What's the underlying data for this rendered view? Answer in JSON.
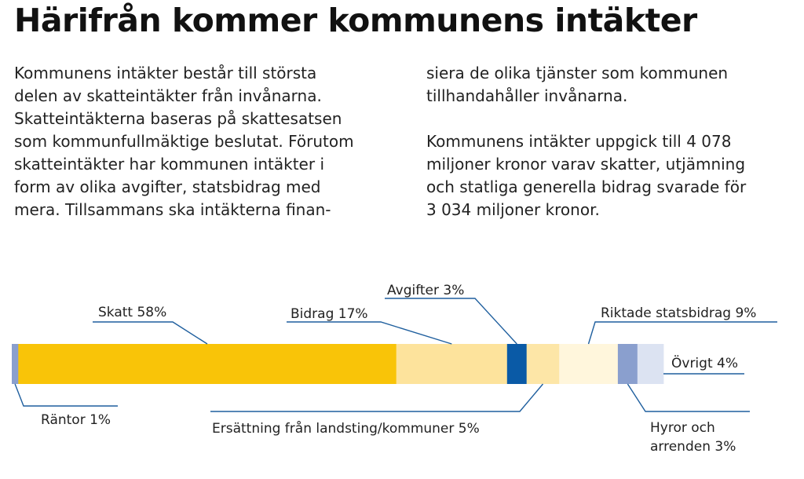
{
  "heading": "Härifrån kommer kommunens intäkter",
  "text": {
    "left_lines": [
      "Kommunens intäkter består till största",
      "delen av skatteintäkter från invånarna.",
      "Skatteintäkterna baseras på skattesatsen",
      "som kommunfullmäktige beslutat. Förutom",
      "skatteintäkter har kommunen intäkter i",
      "form av olika avgifter, statsbidrag med",
      "mera. Tillsammans ska intäkterna finan-"
    ],
    "right_p1_lines": [
      "siera de olika tjänster som kommunen",
      "tillhandahåller invånarna."
    ],
    "right_p2_lines": [
      "Kommunens intäkter uppgick till 4 078",
      "miljoner kronor varav skatter, utjämning",
      "och statliga generella bidrag svarade för",
      "3 034 miljoner kronor."
    ]
  },
  "chart_data": {
    "type": "bar",
    "stacked": true,
    "orientation": "horizontal",
    "categories": [
      "Räntor",
      "Skatt",
      "Bidrag",
      "Avgifter",
      "Ersättning från landsting/kommuner",
      "Riktade statsbidrag",
      "Hyror och arrenden",
      "Övrigt"
    ],
    "values": [
      1,
      58,
      17,
      3,
      5,
      9,
      3,
      4
    ],
    "unit": "%",
    "colors": [
      "#8a9fce",
      "#f9c408",
      "#fde39c",
      "#0a5aa6",
      "#fde6a7",
      "#fff6dc",
      "#8a9fce",
      "#dce3f2"
    ],
    "labels": [
      {
        "lines": [
          "Räntor 1%"
        ]
      },
      {
        "lines": [
          "Skatt 58%"
        ]
      },
      {
        "lines": [
          "Bidrag 17%"
        ]
      },
      {
        "lines": [
          "Avgifter 3%"
        ]
      },
      {
        "lines": [
          "Ersättning från landsting/kommuner 5%"
        ]
      },
      {
        "lines": [
          "Riktade statsbidrag 9%"
        ]
      },
      {
        "lines": [
          "Hyror och",
          "arrenden 3%"
        ]
      },
      {
        "lines": [
          "Övrigt 4%"
        ]
      }
    ],
    "leader_color": "#1f5f9e"
  }
}
